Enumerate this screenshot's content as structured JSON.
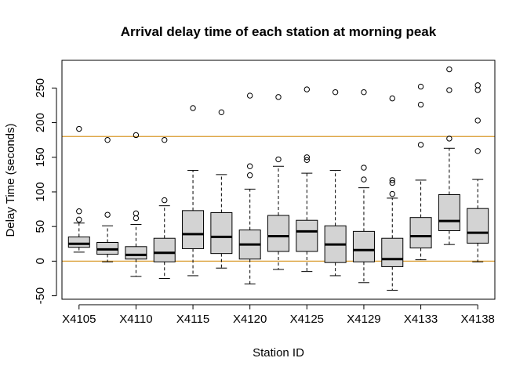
{
  "chart_data": {
    "type": "boxplot",
    "title": "Arrival delay time of each station at morning peak",
    "xlabel": "Station ID",
    "ylabel": "Delay Time (seconds)",
    "ylim": [
      -55,
      290
    ],
    "y_ticks": [
      -50,
      0,
      50,
      100,
      150,
      200,
      250
    ],
    "x_tick_labels": [
      "X4105",
      "X4110",
      "X4115",
      "X4120",
      "X4125",
      "X4129",
      "X4133",
      "X4138"
    ],
    "x_tick_positions": [
      1,
      3,
      5,
      7,
      9,
      11,
      13,
      15
    ],
    "reference_lines": [
      {
        "y": 0,
        "color": "#D99A2B"
      },
      {
        "y": 180,
        "color": "#D99A2B"
      }
    ],
    "box_fill": "#D3D3D3",
    "boxes": [
      {
        "x": 1,
        "whisker_low": 13,
        "q1": 20,
        "median": 25,
        "q3": 35,
        "whisker_high": 55,
        "outliers": [
          60,
          72,
          191
        ]
      },
      {
        "x": 2,
        "whisker_low": -1,
        "q1": 10,
        "median": 17,
        "q3": 27,
        "whisker_high": 51,
        "outliers": [
          67,
          175
        ]
      },
      {
        "x": 3,
        "whisker_low": -22,
        "q1": 3,
        "median": 9,
        "q3": 21,
        "whisker_high": 53,
        "outliers": [
          62,
          69,
          182
        ]
      },
      {
        "x": 4,
        "whisker_low": -25,
        "q1": -1,
        "median": 12,
        "q3": 33,
        "whisker_high": 80,
        "outliers": [
          88,
          175
        ]
      },
      {
        "x": 5,
        "whisker_low": -21,
        "q1": 18,
        "median": 39,
        "q3": 73,
        "whisker_high": 131,
        "outliers": [
          221
        ]
      },
      {
        "x": 6,
        "whisker_low": -10,
        "q1": 11,
        "median": 35,
        "q3": 70,
        "whisker_high": 125,
        "outliers": [
          215
        ]
      },
      {
        "x": 7,
        "whisker_low": -33,
        "q1": 3,
        "median": 24,
        "q3": 45,
        "whisker_high": 104,
        "outliers": [
          124,
          137,
          239
        ]
      },
      {
        "x": 8,
        "whisker_low": -12,
        "q1": 14,
        "median": 36,
        "q3": 66,
        "whisker_high": 137,
        "outliers": [
          147,
          237
        ]
      },
      {
        "x": 9,
        "whisker_low": -15,
        "q1": 14,
        "median": 43,
        "q3": 59,
        "whisker_high": 127,
        "outliers": [
          146,
          150,
          248
        ]
      },
      {
        "x": 10,
        "whisker_low": -21,
        "q1": -2,
        "median": 24,
        "q3": 51,
        "whisker_high": 131,
        "outliers": [
          244
        ]
      },
      {
        "x": 11,
        "whisker_low": -31,
        "q1": -1,
        "median": 16,
        "q3": 43,
        "whisker_high": 106,
        "outliers": [
          118,
          135,
          244
        ]
      },
      {
        "x": 12,
        "whisker_low": -42,
        "q1": -8,
        "median": 3,
        "q3": 33,
        "whisker_high": 91,
        "outliers": [
          97,
          113,
          117,
          235
        ]
      },
      {
        "x": 13,
        "whisker_low": 2,
        "q1": 19,
        "median": 36,
        "q3": 63,
        "whisker_high": 117,
        "outliers": [
          168,
          226,
          252
        ]
      },
      {
        "x": 14,
        "whisker_low": 24,
        "q1": 44,
        "median": 58,
        "q3": 96,
        "whisker_high": 163,
        "outliers": [
          177,
          247,
          277
        ]
      },
      {
        "x": 15,
        "whisker_low": -1,
        "q1": 26,
        "median": 41,
        "q3": 76,
        "whisker_high": 118,
        "outliers": [
          159,
          203,
          247,
          254
        ]
      }
    ]
  }
}
